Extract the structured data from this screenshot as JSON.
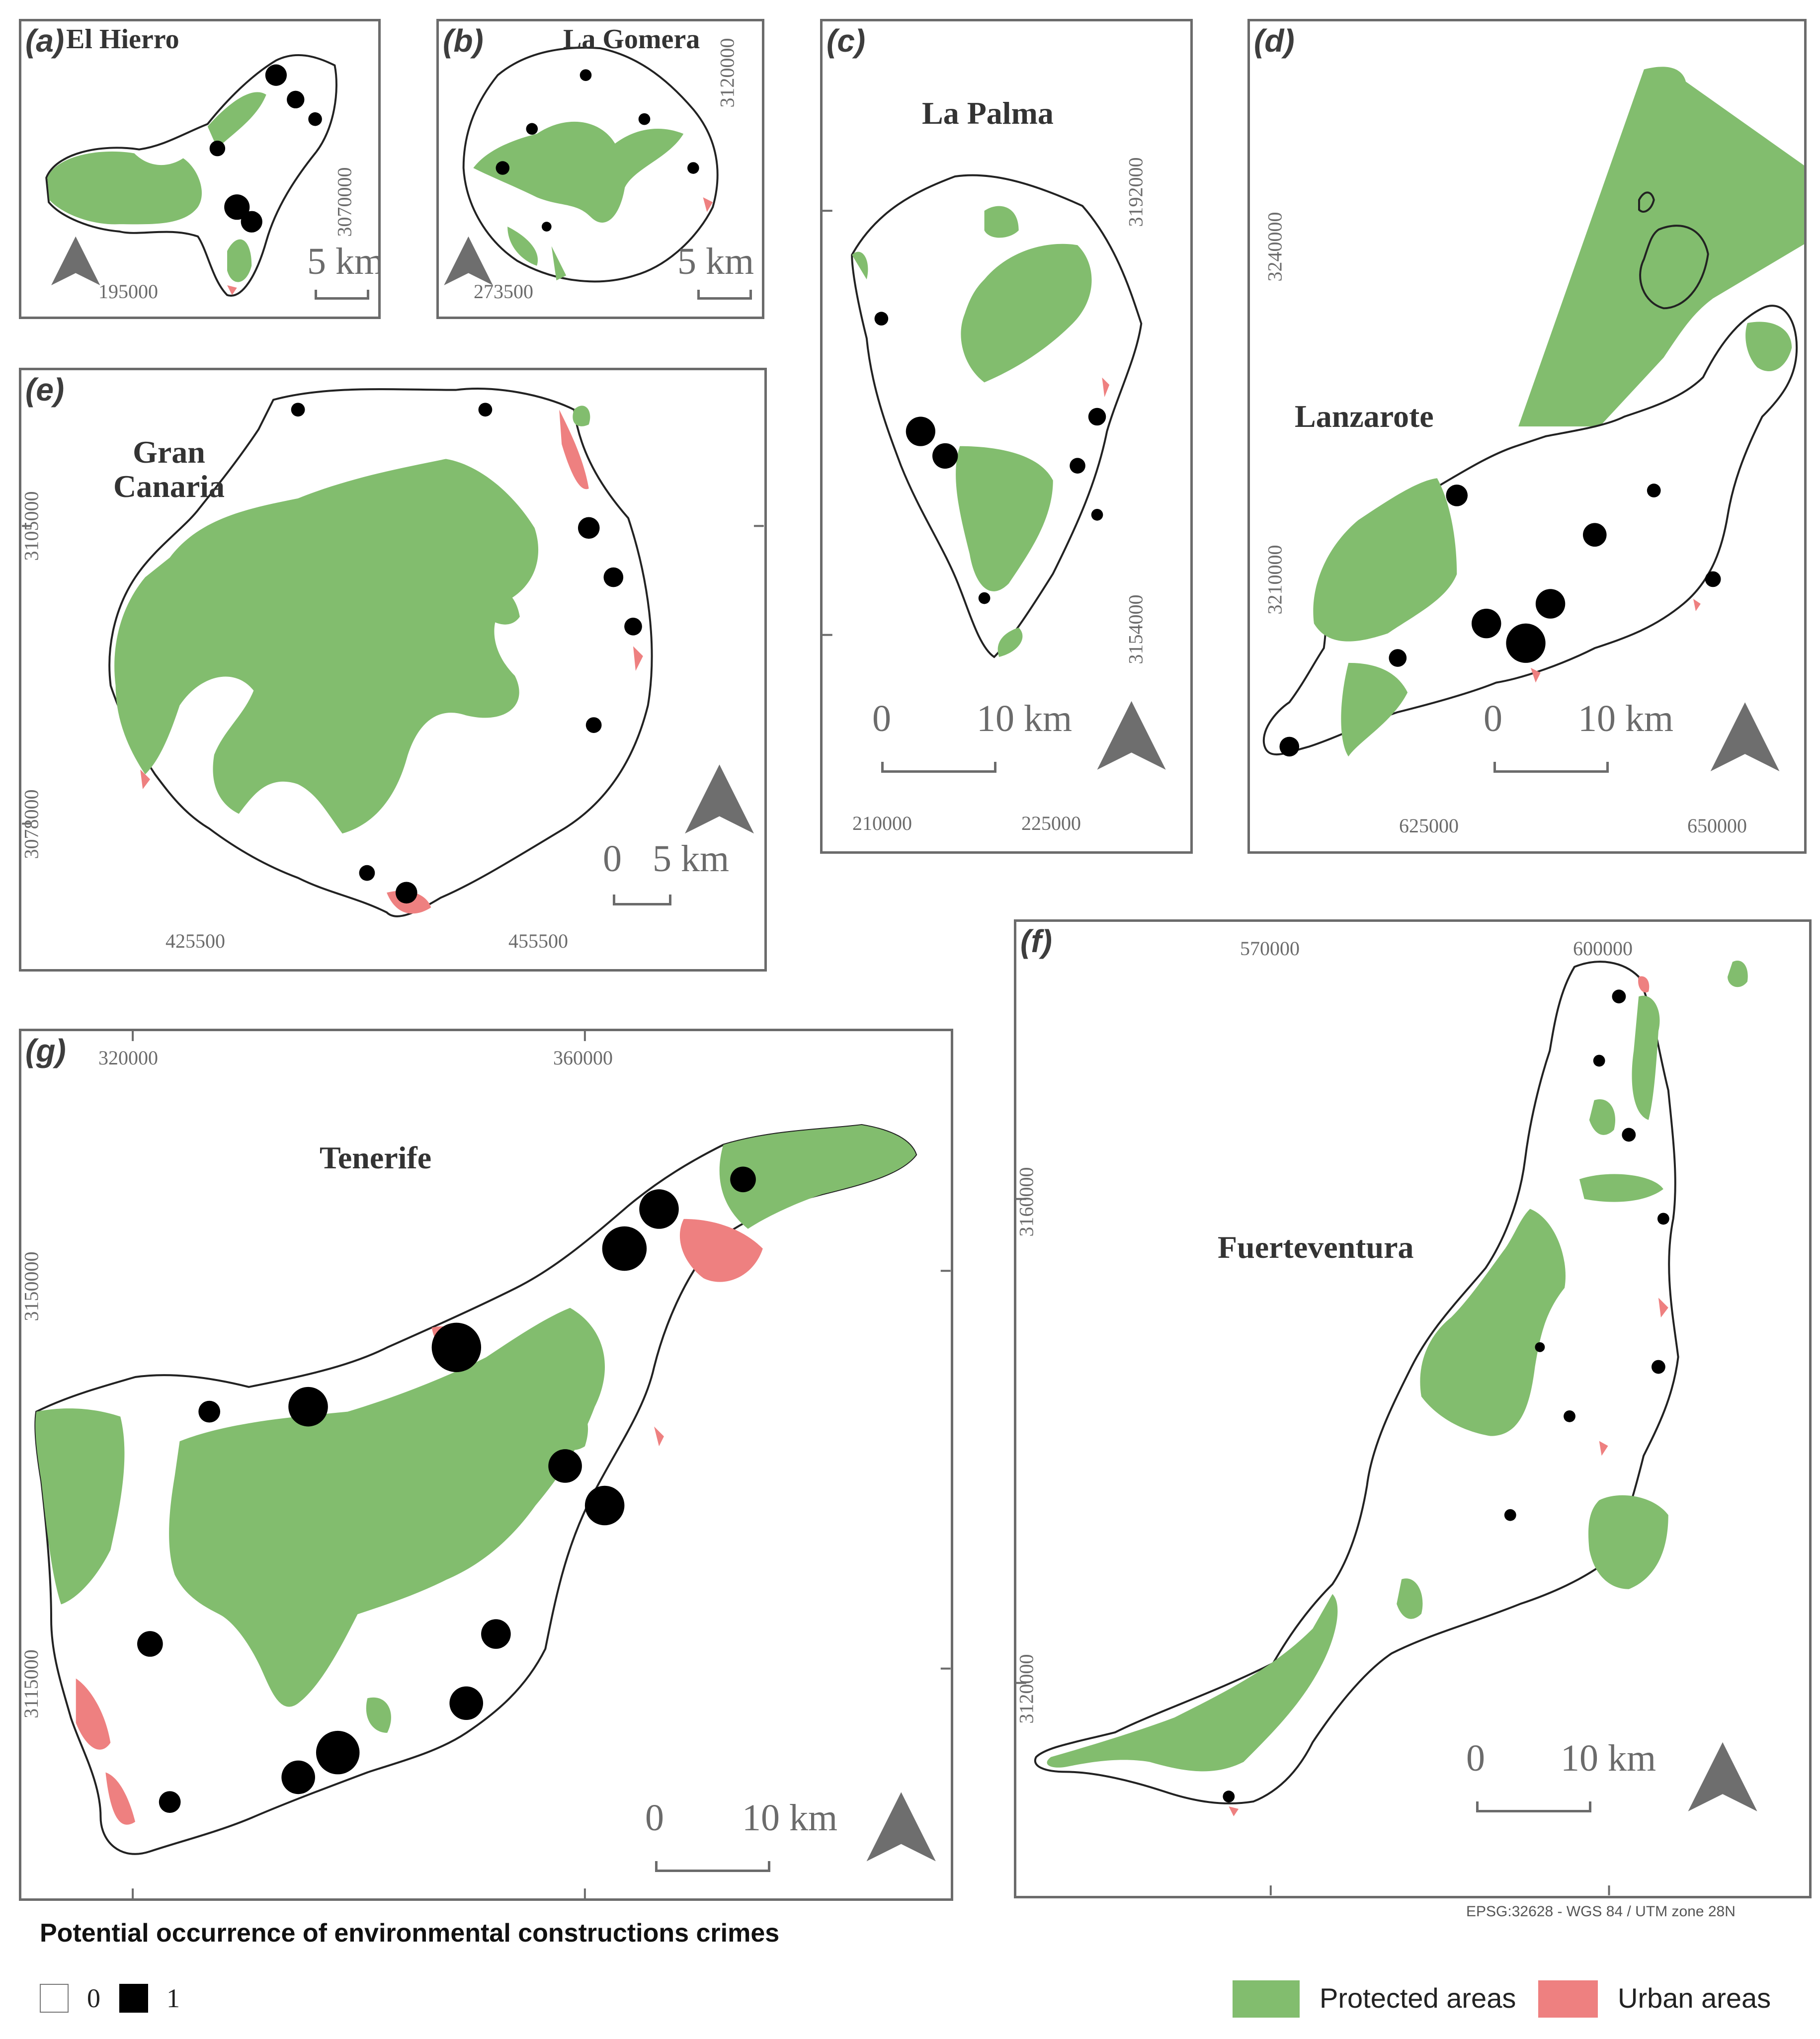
{
  "colors": {
    "protected": "#82bd6e",
    "urban": "#ee8080",
    "crime": "#000000",
    "frame": "#6b6b6b",
    "north": "#6e6e6e"
  },
  "panels": {
    "a": {
      "label": "(a)",
      "name": "El Hierro",
      "x_coord": "195000",
      "y_coord": "3070000",
      "scale_label": "5 km"
    },
    "b": {
      "label": "(b)",
      "name": "La Gomera",
      "x_coord": "273500",
      "y_coord": "3120000",
      "scale_label": "5 km"
    },
    "c": {
      "label": "(c)",
      "name": "La Palma",
      "x_coords": [
        "210000",
        "225000"
      ],
      "y_coords": [
        "3192000",
        "3154000"
      ],
      "scale_zero": "0",
      "scale_label": "10 km"
    },
    "d": {
      "label": "(d)",
      "name": "Lanzarote",
      "x_coords": [
        "625000",
        "650000"
      ],
      "y_coords": [
        "3240000",
        "3210000"
      ],
      "scale_zero": "0",
      "scale_label": "10 km"
    },
    "e": {
      "label": "(e)",
      "name_line1": "Gran",
      "name_line2": "Canaria",
      "x_coords": [
        "425500",
        "455500"
      ],
      "y_coords": [
        "3105000",
        "3078000"
      ],
      "scale_zero": "0",
      "scale_label": "5 km"
    },
    "f": {
      "label": "(f)",
      "name": "Fuerteventura",
      "x_coords": [
        "570000",
        "600000"
      ],
      "y_coords": [
        "3160000",
        "3120000"
      ],
      "scale_zero": "0",
      "scale_label": "10 km"
    },
    "g": {
      "label": "(g)",
      "name": "Tenerife",
      "x_coords": [
        "320000",
        "360000"
      ],
      "y_coords": [
        "3150000",
        "3115000"
      ],
      "scale_zero": "0",
      "scale_label": "10 km"
    }
  },
  "crs": "EPSG:32628 - WGS 84 / UTM zone 28N",
  "legend": {
    "title": "Potential occurrence of environmental constructions crimes",
    "class_0": "0",
    "class_1": "1",
    "protected_label": "Protected areas",
    "urban_label": "Urban areas"
  }
}
